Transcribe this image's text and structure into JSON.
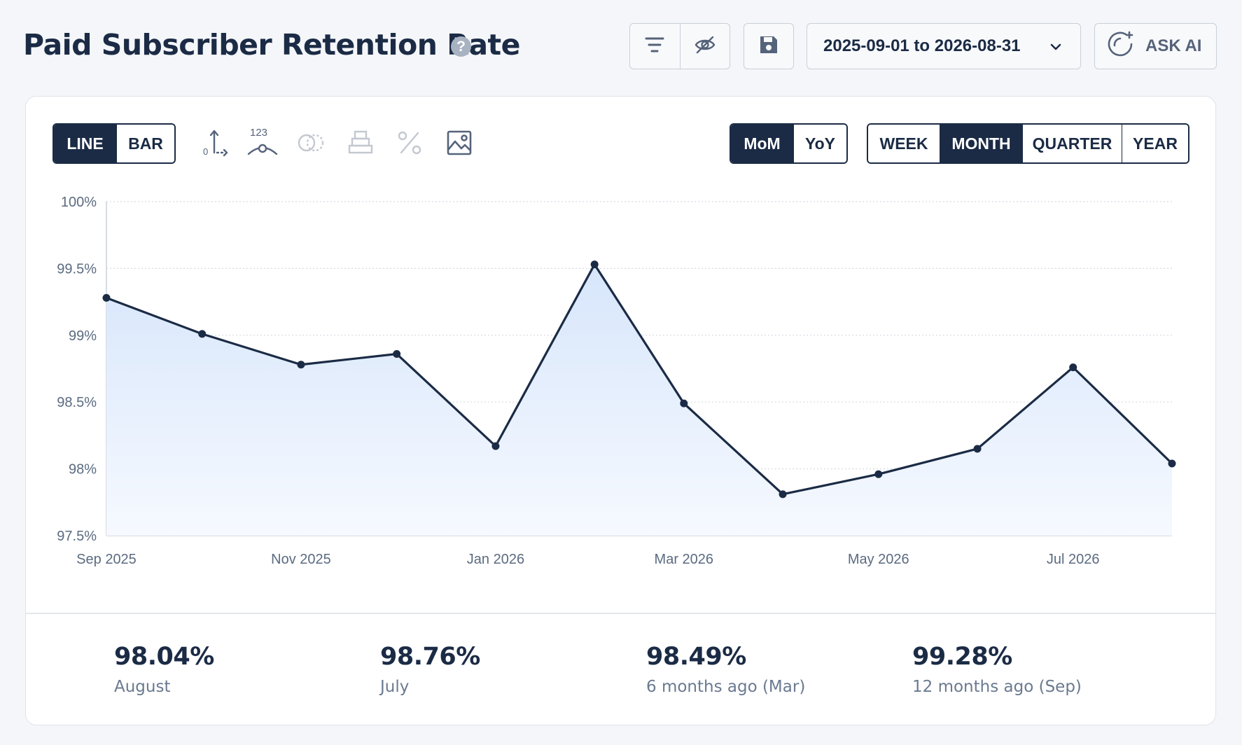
{
  "header": {
    "title": "Paid Subscriber Retention Rate",
    "help_glyph": "?",
    "date_range": "2025-09-01 to 2026-08-31",
    "ask_ai_label": "ASK AI"
  },
  "toolbar": {
    "chart_types": [
      "LINE",
      "BAR"
    ],
    "active_chart_type": "LINE",
    "compare_modes": [
      "MoM",
      "YoY"
    ],
    "active_compare": "MoM",
    "periods": [
      "WEEK",
      "MONTH",
      "QUARTER",
      "YEAR"
    ],
    "active_period": "MONTH",
    "value_labels_glyph": "123"
  },
  "stats": [
    {
      "value": "98.04%",
      "label": "August"
    },
    {
      "value": "98.76%",
      "label": "July"
    },
    {
      "value": "98.49%",
      "label": "6 months ago (Mar)"
    },
    {
      "value": "99.28%",
      "label": "12 months ago (Sep)"
    }
  ],
  "colors": {
    "line": "#1b2b45",
    "area_top": "#d7e6fb",
    "area_bottom": "#f6f9ff",
    "grid": "#d5dbe3",
    "axis": "#c9d0d9"
  },
  "chart_data": {
    "type": "area",
    "x": [
      "2025-09-01",
      "2025-10-01",
      "2025-11-01",
      "2025-12-01",
      "2026-01-01",
      "2026-02-01",
      "2026-03-01",
      "2026-04-01",
      "2026-05-01",
      "2026-06-01",
      "2026-07-01",
      "2026-08-01"
    ],
    "x_tick_labels": [
      {
        "x": "2025-09-01",
        "label": "Sep 2025"
      },
      {
        "x": "2025-11-01",
        "label": "Nov 2025"
      },
      {
        "x": "2026-01-01",
        "label": "Jan 2026"
      },
      {
        "x": "2026-03-01",
        "label": "Mar 2026"
      },
      {
        "x": "2026-05-01",
        "label": "May 2026"
      },
      {
        "x": "2026-07-01",
        "label": "Jul 2026"
      }
    ],
    "series": [
      {
        "values": [
          99.28,
          99.01,
          98.78,
          98.86,
          98.17,
          99.53,
          98.49,
          97.81,
          97.96,
          98.15,
          98.76,
          98.04
        ]
      }
    ],
    "y_ticks": [
      97.5,
      98,
      98.5,
      99,
      99.5,
      100
    ],
    "y_tick_labels": [
      "97.5%",
      "98%",
      "98.5%",
      "99%",
      "99.5%",
      "100%"
    ],
    "ylim": [
      97.5,
      100
    ],
    "grid": true,
    "title": "Paid Subscriber Retention Rate",
    "xlabel": "",
    "ylabel": ""
  }
}
